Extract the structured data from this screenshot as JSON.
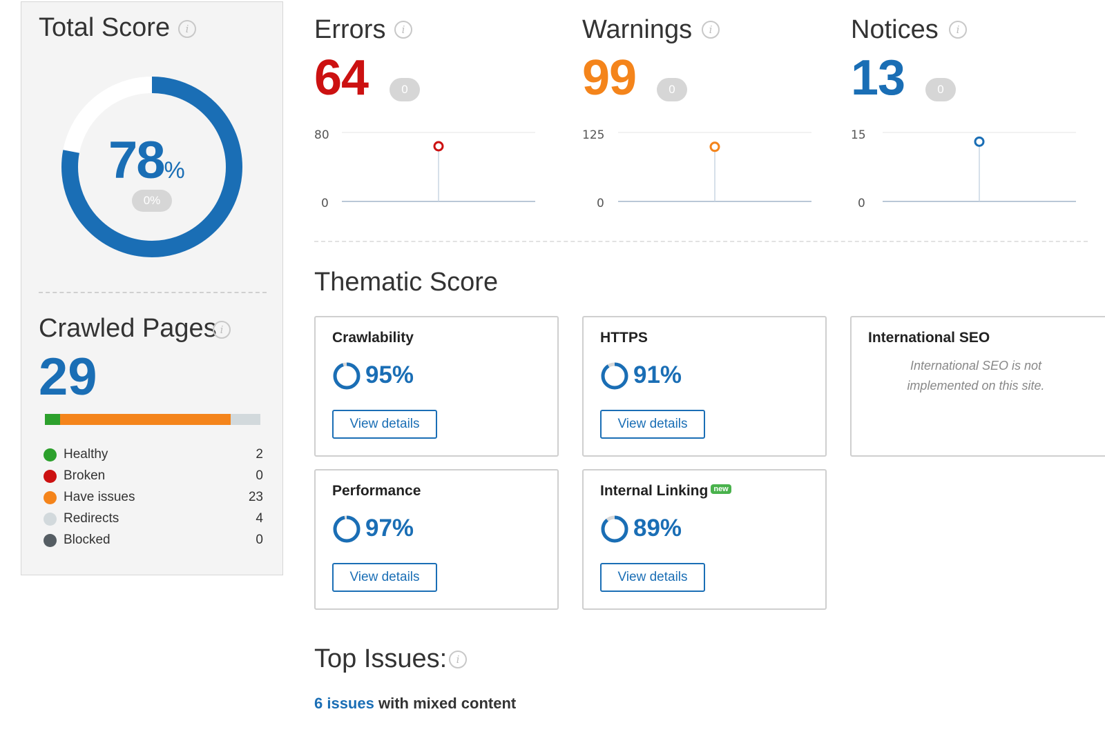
{
  "total_score": {
    "title": "Total Score",
    "value": "78",
    "unit": "%",
    "percent": 78,
    "delta": "0%"
  },
  "crawled_pages": {
    "title": "Crawled Pages",
    "value": "29",
    "bar": [
      {
        "key": "healthy",
        "count": 2,
        "color": "#2ca02c"
      },
      {
        "key": "broken",
        "count": 0,
        "color": "#cc1111"
      },
      {
        "key": "issues",
        "count": 23,
        "color": "#f4841b"
      },
      {
        "key": "redirects",
        "count": 4,
        "color": "#d2d9dc"
      },
      {
        "key": "blocked",
        "count": 0,
        "color": "#555d63"
      }
    ],
    "legend": [
      {
        "label": "Healthy",
        "count": "2",
        "color": "#2ca02c"
      },
      {
        "label": "Broken",
        "count": "0",
        "color": "#cc1111"
      },
      {
        "label": "Have issues",
        "count": "23",
        "color": "#f4841b"
      },
      {
        "label": "Redirects",
        "count": "4",
        "color": "#d2d9dc"
      },
      {
        "label": "Blocked",
        "count": "0",
        "color": "#555d63"
      }
    ]
  },
  "metrics": [
    {
      "title": "Errors",
      "value": "64",
      "delta": "0",
      "color": "#cc1111",
      "y_max": "80",
      "y_min": "0",
      "point": 64,
      "scale": 80
    },
    {
      "title": "Warnings",
      "value": "99",
      "delta": "0",
      "color": "#f4841b",
      "y_max": "125",
      "y_min": "0",
      "point": 99,
      "scale": 125
    },
    {
      "title": "Notices",
      "value": "13",
      "delta": "0",
      "color": "#1a6eb5",
      "y_max": "15",
      "y_min": "0",
      "point": 13,
      "scale": 15
    }
  ],
  "thematic": {
    "title": "Thematic Score",
    "cards": [
      {
        "title": "Crawlability",
        "value": "95%",
        "percent": 95,
        "button": "View details"
      },
      {
        "title": "HTTPS",
        "value": "91%",
        "percent": 91,
        "button": "View details"
      },
      {
        "title": "International SEO",
        "note": "International SEO is not implemented on this site."
      },
      {
        "title": "Performance",
        "value": "97%",
        "percent": 97,
        "button": "View details"
      },
      {
        "title": "Internal Linking",
        "badge": "new",
        "value": "89%",
        "percent": 89,
        "button": "View details"
      }
    ]
  },
  "top_issues": {
    "title": "Top Issues:",
    "first_issue_link": "6 issues",
    "first_issue_text": "with mixed content"
  },
  "colors": {
    "accent": "#1a6eb5",
    "error": "#cc1111",
    "warning": "#f4841b"
  }
}
